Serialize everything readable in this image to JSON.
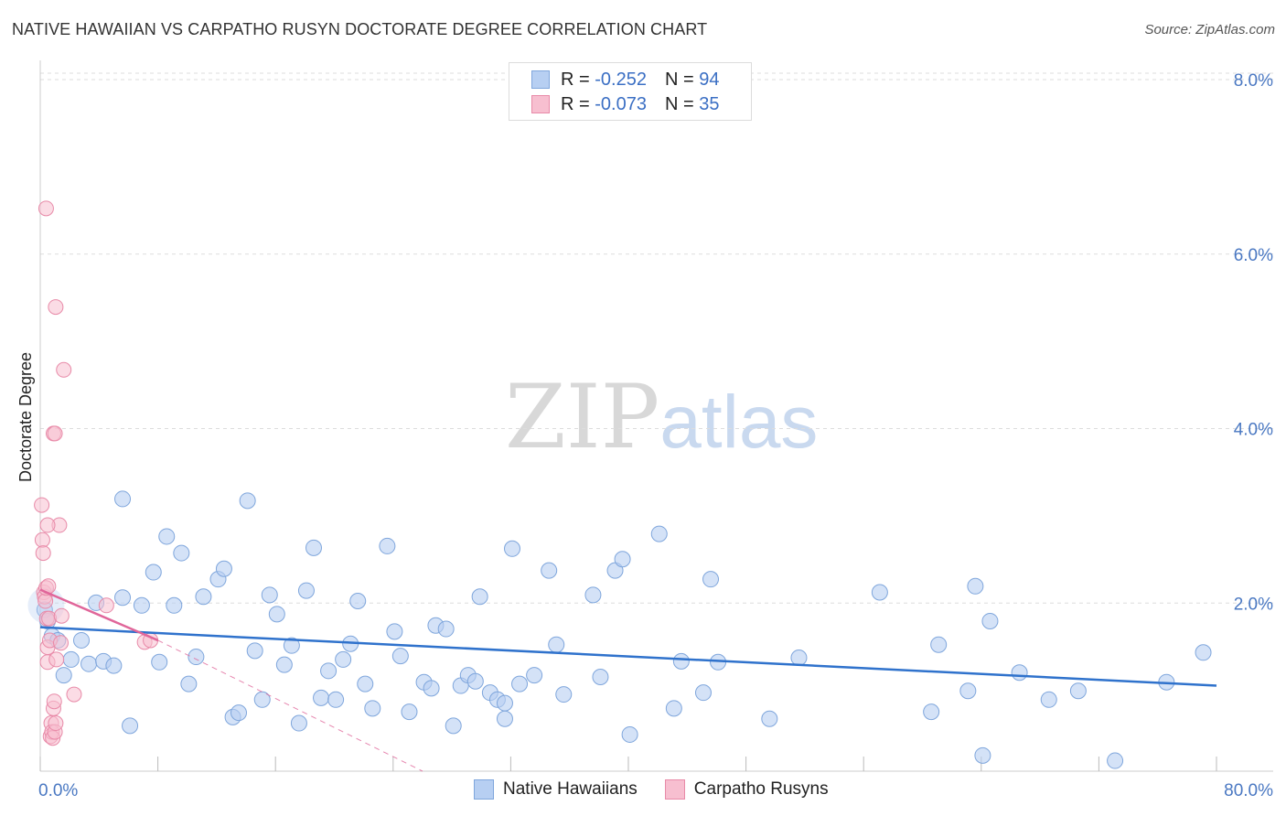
{
  "header": {
    "title": "NATIVE HAWAIIAN VS CARPATHO RUSYN DOCTORATE DEGREE CORRELATION CHART",
    "source": "Source: ZipAtlas.com"
  },
  "watermark": {
    "zip": "ZIP",
    "atlas": "atlas"
  },
  "legend": {
    "rows": [
      {
        "r_label": "R = ",
        "r_value": "-0.252",
        "n_label": "N = ",
        "n_value": "94"
      },
      {
        "r_label": "R = ",
        "r_value": "-0.073",
        "n_label": "N = ",
        "n_value": "35"
      }
    ]
  },
  "bottom_legend": {
    "items": [
      "Native Hawaiians",
      "Carpatho Rusyns"
    ]
  },
  "colors": {
    "blue_fill": "#b7cff2",
    "blue_stroke": "#7fa6dc",
    "blue_line": "#2f72cc",
    "pink_fill": "#f7bfd0",
    "pink_stroke": "#e88aa8",
    "pink_line": "#e0669a",
    "tick_text": "#4a78c2",
    "grid": "#dddddd"
  },
  "chart_data": {
    "type": "scatter",
    "title": "NATIVE HAWAIIAN VS CARPATHO RUSYN DOCTORATE DEGREE CORRELATION CHART",
    "xlabel": "",
    "ylabel": "Doctorate Degree",
    "xlim": [
      0,
      80
    ],
    "ylim": [
      0,
      8
    ],
    "x_tick_labels": [
      "0.0%",
      "80.0%"
    ],
    "y_ticks": [
      2,
      4,
      6,
      8
    ],
    "y_tick_labels": [
      "2.0%",
      "4.0%",
      "6.0%",
      "8.0%"
    ],
    "grid": true,
    "legend_position": "top-center",
    "series": [
      {
        "name": "Native Hawaiians",
        "color": "#b7cff2",
        "r": -0.252,
        "n": 94,
        "trend": {
          "x": [
            0,
            80
          ],
          "y": [
            1.65,
            0.98
          ]
        },
        "points": [
          [
            0.3,
            1.85
          ],
          [
            0.5,
            1.72
          ],
          [
            0.8,
            1.55
          ],
          [
            1.2,
            1.5
          ],
          [
            1.6,
            1.1
          ],
          [
            2.1,
            1.28
          ],
          [
            2.8,
            1.5
          ],
          [
            3.3,
            1.23
          ],
          [
            3.8,
            1.93
          ],
          [
            4.3,
            1.26
          ],
          [
            5.0,
            1.21
          ],
          [
            5.6,
            1.99
          ],
          [
            5.6,
            3.12
          ],
          [
            6.1,
            0.52
          ],
          [
            6.9,
            1.9
          ],
          [
            7.7,
            2.28
          ],
          [
            8.1,
            1.25
          ],
          [
            8.6,
            2.69
          ],
          [
            9.1,
            1.9
          ],
          [
            9.6,
            2.5
          ],
          [
            10.1,
            1.0
          ],
          [
            10.6,
            1.31
          ],
          [
            11.1,
            2.0
          ],
          [
            12.1,
            2.2
          ],
          [
            12.5,
            2.32
          ],
          [
            13.1,
            0.62
          ],
          [
            13.5,
            0.67
          ],
          [
            14.1,
            3.1
          ],
          [
            14.6,
            1.38
          ],
          [
            15.1,
            0.82
          ],
          [
            15.6,
            2.02
          ],
          [
            16.1,
            1.8
          ],
          [
            16.6,
            1.22
          ],
          [
            17.1,
            1.44
          ],
          [
            17.6,
            0.55
          ],
          [
            18.1,
            2.07
          ],
          [
            18.6,
            2.56
          ],
          [
            19.1,
            0.84
          ],
          [
            19.6,
            1.15
          ],
          [
            20.1,
            0.82
          ],
          [
            20.6,
            1.28
          ],
          [
            21.1,
            1.46
          ],
          [
            21.6,
            1.95
          ],
          [
            22.1,
            1.0
          ],
          [
            22.6,
            0.72
          ],
          [
            23.6,
            2.58
          ],
          [
            24.1,
            1.6
          ],
          [
            24.5,
            1.32
          ],
          [
            25.1,
            0.68
          ],
          [
            26.1,
            1.02
          ],
          [
            26.6,
            0.95
          ],
          [
            26.9,
            1.67
          ],
          [
            27.6,
            1.63
          ],
          [
            28.1,
            0.52
          ],
          [
            28.6,
            0.98
          ],
          [
            29.1,
            1.1
          ],
          [
            29.6,
            1.03
          ],
          [
            29.9,
            2.0
          ],
          [
            30.6,
            0.9
          ],
          [
            31.1,
            0.82
          ],
          [
            31.6,
            0.78
          ],
          [
            31.6,
            0.6
          ],
          [
            32.1,
            2.55
          ],
          [
            32.6,
            1.0
          ],
          [
            33.6,
            1.1
          ],
          [
            34.6,
            2.3
          ],
          [
            35.1,
            1.45
          ],
          [
            35.6,
            0.88
          ],
          [
            37.6,
            2.02
          ],
          [
            38.1,
            1.08
          ],
          [
            39.1,
            2.3
          ],
          [
            39.6,
            2.43
          ],
          [
            40.1,
            0.42
          ],
          [
            42.1,
            2.72
          ],
          [
            43.1,
            0.72
          ],
          [
            43.6,
            1.26
          ],
          [
            45.1,
            0.9
          ],
          [
            45.6,
            2.2
          ],
          [
            46.1,
            1.25
          ],
          [
            49.6,
            0.6
          ],
          [
            51.6,
            1.3
          ],
          [
            57.1,
            2.05
          ],
          [
            60.6,
            0.68
          ],
          [
            61.1,
            1.45
          ],
          [
            63.1,
            0.92
          ],
          [
            63.6,
            2.12
          ],
          [
            64.1,
            0.18
          ],
          [
            64.6,
            1.72
          ],
          [
            66.6,
            1.13
          ],
          [
            68.6,
            0.82
          ],
          [
            70.6,
            0.92
          ],
          [
            73.1,
            0.12
          ],
          [
            76.6,
            1.02
          ],
          [
            79.1,
            1.36
          ]
        ]
      },
      {
        "name": "Carpatho Rusyns",
        "color": "#f7bfd0",
        "r": -0.073,
        "n": 35,
        "trend": {
          "x": [
            0,
            8.0
          ],
          "y": [
            2.08,
            1.5
          ]
        },
        "trend_dashed": {
          "x": [
            8.0,
            26.0
          ],
          "y": [
            1.5,
            0.0
          ]
        },
        "points": [
          [
            0.1,
            3.05
          ],
          [
            0.15,
            2.65
          ],
          [
            0.2,
            2.5
          ],
          [
            0.25,
            2.05
          ],
          [
            0.3,
            2.0
          ],
          [
            0.35,
            1.95
          ],
          [
            0.4,
            2.1
          ],
          [
            0.45,
            1.75
          ],
          [
            0.5,
            1.42
          ],
          [
            0.5,
            1.25
          ],
          [
            0.55,
            2.12
          ],
          [
            0.6,
            1.75
          ],
          [
            0.65,
            1.5
          ],
          [
            0.7,
            0.4
          ],
          [
            0.75,
            0.55
          ],
          [
            0.8,
            0.45
          ],
          [
            0.85,
            0.38
          ],
          [
            0.9,
            0.72
          ],
          [
            0.95,
            0.8
          ],
          [
            1.0,
            0.45
          ],
          [
            1.05,
            0.55
          ],
          [
            1.1,
            1.28
          ],
          [
            0.4,
            6.45
          ],
          [
            0.9,
            3.87
          ],
          [
            1.0,
            3.87
          ],
          [
            1.05,
            5.32
          ],
          [
            1.3,
            2.82
          ],
          [
            0.5,
            2.82
          ],
          [
            1.45,
            1.78
          ],
          [
            1.6,
            4.6
          ],
          [
            1.4,
            1.47
          ],
          [
            2.3,
            0.88
          ],
          [
            4.5,
            1.9
          ],
          [
            7.1,
            1.48
          ],
          [
            7.5,
            1.5
          ]
        ]
      }
    ]
  }
}
